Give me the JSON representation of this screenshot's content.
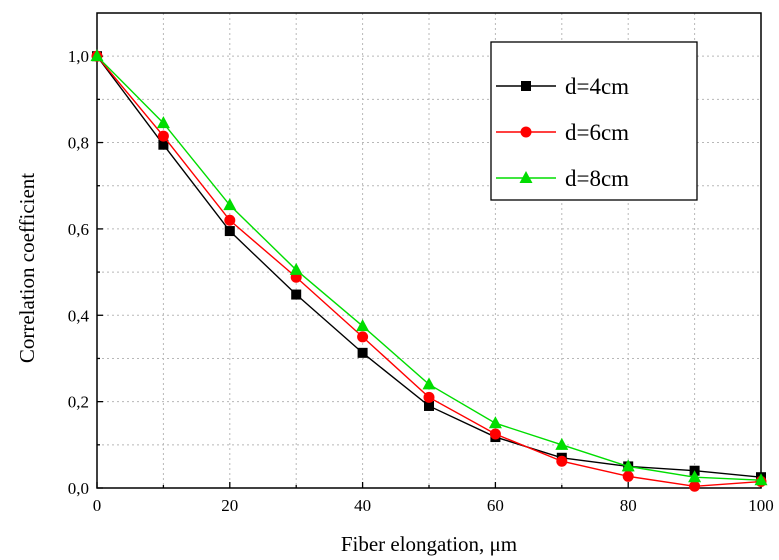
{
  "chart_data": {
    "type": "line",
    "title": "",
    "xlabel": "Fiber elongation, μm",
    "ylabel": "Correlation coefficient",
    "xlim": [
      0,
      100
    ],
    "ylim": [
      0,
      1.1
    ],
    "xticks": [
      0,
      20,
      40,
      60,
      80,
      100
    ],
    "yticks": [
      0.0,
      0.2,
      0.4,
      0.6,
      0.8,
      1.0
    ],
    "xtick_labels": [
      "0",
      "20",
      "40",
      "60",
      "80",
      "100"
    ],
    "ytick_labels": [
      "0,0",
      "0,2",
      "0,4",
      "0,6",
      "0,8",
      "1,0"
    ],
    "grid": true,
    "legend_position": "top-right",
    "x": [
      0,
      10,
      20,
      30,
      40,
      50,
      60,
      70,
      80,
      90,
      100
    ],
    "series": [
      {
        "name": "d=4cm",
        "color": "#000000",
        "marker": "square",
        "values": [
          1.0,
          0.795,
          0.595,
          0.448,
          0.313,
          0.19,
          0.118,
          0.07,
          0.05,
          0.04,
          0.025
        ]
      },
      {
        "name": "d=6cm",
        "color": "#ff0000",
        "marker": "circle",
        "values": [
          1.0,
          0.815,
          0.62,
          0.488,
          0.35,
          0.21,
          0.125,
          0.062,
          0.027,
          0.004,
          0.015
        ]
      },
      {
        "name": "d=8cm",
        "color": "#00dd00",
        "marker": "triangle",
        "values": [
          1.0,
          0.845,
          0.655,
          0.505,
          0.375,
          0.24,
          0.15,
          0.1,
          0.05,
          0.025,
          0.018
        ]
      }
    ]
  }
}
